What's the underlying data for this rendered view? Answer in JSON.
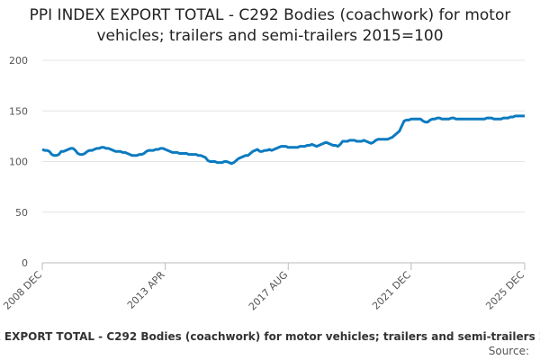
{
  "chart_data": {
    "type": "line",
    "title": "PPI INDEX EXPORT TOTAL - C292 Bodies (coachwork) for motor vehicles; trailers and semi-trailers 2015=100",
    "source_label": "Source:",
    "categories": [
      "2008 DEC",
      null,
      null,
      null,
      null,
      null,
      null,
      null,
      null,
      null,
      null,
      null,
      null,
      null,
      null,
      null,
      null,
      null,
      null,
      null,
      null,
      null,
      null,
      null,
      null,
      null,
      null,
      null,
      null,
      null,
      null,
      null,
      null,
      null,
      null,
      null,
      null,
      null,
      null,
      null,
      null,
      null,
      null,
      null,
      null,
      null,
      null,
      null,
      null,
      null,
      null,
      null,
      "2013 APR",
      null,
      null,
      null,
      null,
      null,
      null,
      null,
      null,
      null,
      null,
      null,
      null,
      null,
      null,
      null,
      null,
      null,
      null,
      null,
      null,
      null,
      null,
      null,
      null,
      null,
      null,
      null,
      null,
      null,
      null,
      null,
      null,
      null,
      null,
      null,
      null,
      null,
      null,
      null,
      null,
      null,
      null,
      null,
      null,
      null,
      null,
      null,
      null,
      null,
      null,
      null,
      "2017 AUG",
      null,
      null,
      null,
      null,
      null,
      null,
      null,
      null,
      null,
      null,
      null,
      null,
      null,
      null,
      null,
      null,
      null,
      null,
      null,
      null,
      null,
      null,
      null,
      null,
      null,
      null,
      null,
      null,
      null,
      null,
      null,
      null,
      null,
      null,
      null,
      null,
      null,
      null,
      null,
      null,
      null,
      null,
      null,
      null,
      null,
      null,
      null,
      null,
      null,
      null,
      null,
      "2021 DEC",
      null,
      null,
      null,
      null,
      null,
      null,
      null,
      null,
      null,
      null,
      null,
      null,
      null,
      null,
      null,
      null,
      null,
      null,
      null,
      null,
      null,
      null,
      null,
      null,
      null,
      null,
      null,
      null,
      null,
      null,
      null,
      null,
      null,
      null,
      null,
      null,
      null,
      null,
      null,
      null,
      null,
      null,
      null,
      null,
      null,
      null,
      null,
      "2025 DEC"
    ],
    "series": [
      {
        "name": "PPI INDEX EXPORT TOTAL - C292 Bodies (coachwork) for motor vehicles; trailers and semi-trailers 2015=100",
        "color": "#0b7bc0",
        "values": [
          112,
          111,
          111,
          110,
          107,
          106,
          106,
          107,
          110,
          110,
          111,
          112,
          113,
          113,
          111,
          108,
          107,
          107,
          108,
          110,
          111,
          111,
          112,
          113,
          113,
          114,
          114,
          113,
          113,
          112,
          111,
          110,
          110,
          110,
          109,
          109,
          108,
          107,
          106,
          106,
          106,
          107,
          107,
          108,
          110,
          111,
          111,
          111,
          112,
          112,
          113,
          113,
          112,
          111,
          110,
          109,
          109,
          109,
          108,
          108,
          108,
          108,
          107,
          107,
          107,
          107,
          106,
          106,
          105,
          104,
          101,
          100,
          100,
          100,
          99,
          99,
          99,
          100,
          100,
          99,
          98,
          99,
          101,
          103,
          104,
          105,
          106,
          106,
          108,
          110,
          111,
          112,
          110,
          110,
          111,
          111,
          112,
          111,
          112,
          113,
          114,
          115,
          115,
          115,
          114,
          114,
          114,
          114,
          114,
          115,
          115,
          115,
          116,
          116,
          117,
          116,
          115,
          116,
          117,
          118,
          119,
          118,
          117,
          116,
          116,
          115,
          117,
          120,
          120,
          120,
          121,
          121,
          121,
          120,
          120,
          120,
          121,
          120,
          119,
          118,
          119,
          121,
          122,
          122,
          122,
          122,
          122,
          123,
          124,
          126,
          128,
          130,
          135,
          140,
          141,
          141,
          142,
          142,
          142,
          142,
          142,
          140,
          139,
          139,
          141,
          142,
          142,
          143,
          143,
          142,
          142,
          142,
          142,
          143,
          143,
          142,
          142,
          142,
          142,
          142,
          142,
          142,
          142,
          142,
          142,
          142,
          142,
          142,
          143,
          143,
          143,
          142,
          142,
          142,
          142,
          143,
          143,
          143,
          144,
          144,
          145,
          145,
          145,
          145,
          145
        ]
      }
    ],
    "ylim": [
      0,
      200
    ],
    "yticks": [
      0,
      50,
      100,
      150,
      200
    ],
    "grid": true
  }
}
